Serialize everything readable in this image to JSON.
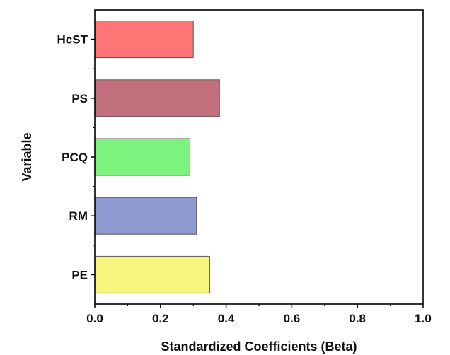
{
  "chart_data": {
    "type": "bar",
    "orientation": "horizontal",
    "categories": [
      "HcST",
      "PS",
      "PCQ",
      "RM",
      "PE"
    ],
    "values": [
      0.3,
      0.38,
      0.29,
      0.31,
      0.35
    ],
    "colors": [
      "#ff7575",
      "#c2707e",
      "#7df37d",
      "#8e9ad0",
      "#f8f67c"
    ],
    "xlabel": "Standardized Coefficients (Beta)",
    "ylabel": "Variable",
    "xlim": [
      0,
      1.0
    ],
    "xticks": [
      "0.0",
      "0.2",
      "0.4",
      "0.6",
      "0.8",
      "1.0"
    ],
    "xtick_values": [
      0,
      0.2,
      0.4,
      0.6,
      0.8,
      1.0
    ],
    "grid": false,
    "legend": "none"
  }
}
